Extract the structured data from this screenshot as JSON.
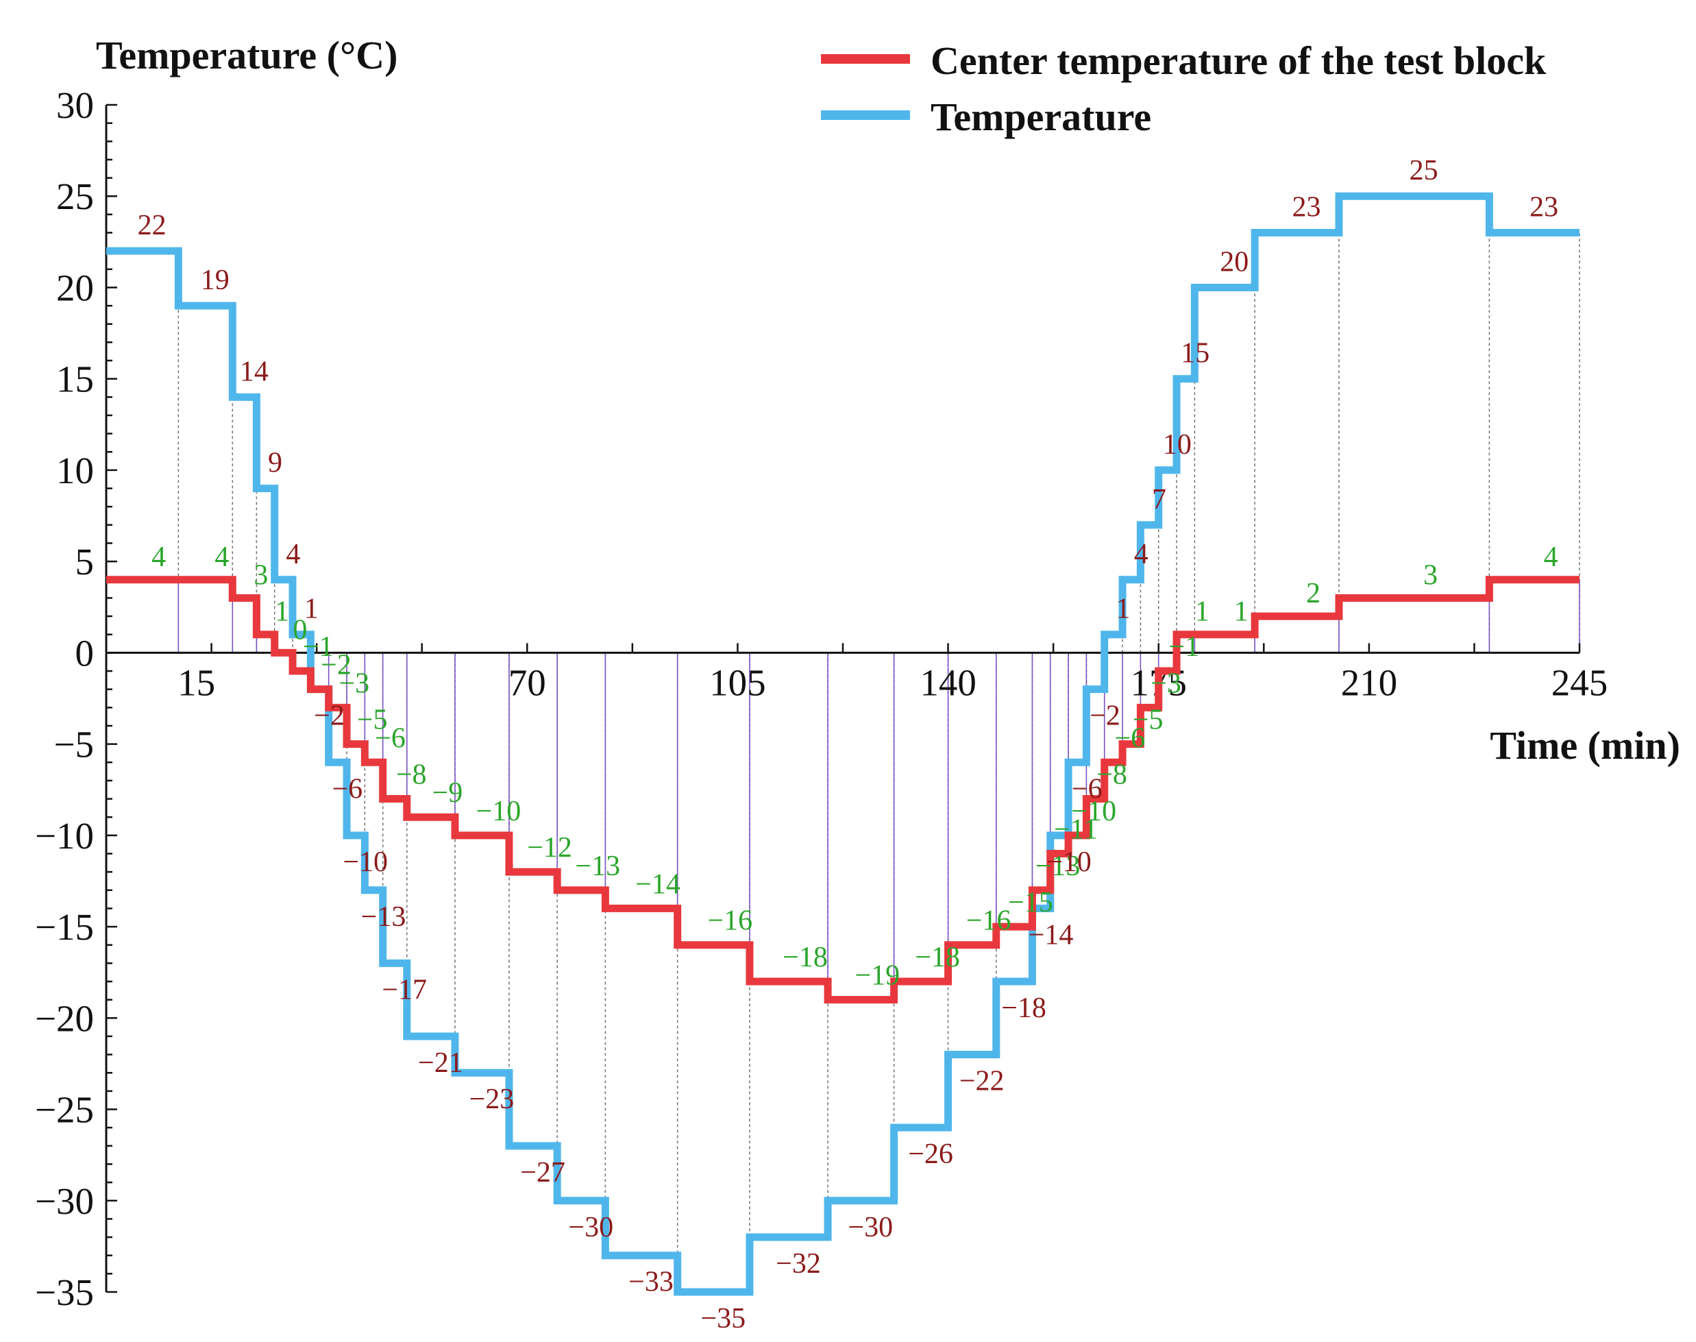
{
  "chart_data": {
    "type": "line",
    "title": "",
    "ylabel": "Temperature (°C)",
    "xlabel": "Time (min)",
    "xlim": [
      0,
      245
    ],
    "ylim": [
      -35,
      30
    ],
    "xticks": [
      15,
      70,
      105,
      140,
      175,
      210,
      245
    ],
    "yticks": [
      30,
      25,
      20,
      15,
      10,
      5,
      0,
      -5,
      -10,
      -15,
      -20,
      -25,
      -30,
      -35
    ],
    "legend_position": "top-right",
    "step_times": [
      0,
      12,
      21,
      25,
      28,
      31,
      34,
      37,
      40,
      43,
      46,
      50,
      58,
      67,
      75,
      83,
      95,
      107,
      120,
      131,
      140,
      148,
      154,
      157,
      160,
      163,
      166,
      169,
      172,
      175,
      178,
      181,
      191,
      205,
      230,
      245
    ],
    "series": [
      {
        "name": "Center temperature of the test block",
        "color": "#e8383d",
        "values": [
          4,
          4,
          3,
          1,
          0,
          -1,
          -2,
          -3,
          -5,
          -6,
          -8,
          -9,
          -10,
          -12,
          -13,
          -14,
          -16,
          -18,
          -19,
          -18,
          -16,
          -15,
          -13,
          -11,
          -10,
          -8,
          -6,
          -5,
          -3,
          -1,
          1,
          1,
          2,
          3,
          4
        ]
      },
      {
        "name": "Temperature",
        "color": "#4fb6ec",
        "values": [
          22,
          19,
          14,
          9,
          4,
          1,
          -2,
          -6,
          -10,
          -13,
          -17,
          -21,
          -23,
          -27,
          -30,
          -33,
          -35,
          -32,
          -30,
          -26,
          -22,
          -18,
          -14,
          -10,
          -6,
          -2,
          1,
          4,
          7,
          10,
          15,
          20,
          23,
          25,
          23
        ]
      }
    ],
    "data_labels": {
      "center_labels": [
        "4",
        "4",
        "3",
        "1",
        "0",
        "−1",
        "−2",
        "−3",
        "−5",
        "−6",
        "−8",
        "−9",
        "−10",
        "−12",
        "−13",
        "−14",
        "−16",
        "−18",
        "−19",
        "−18",
        "−16",
        "−15",
        "−13",
        "−11",
        "−10",
        "−8",
        "−6",
        "−5",
        "−3",
        "−1",
        "1",
        "1",
        "2",
        "3",
        "4"
      ],
      "temperature_labels": [
        "22",
        "19",
        "14",
        "9",
        "4",
        "1",
        "−2",
        "−6",
        "−10",
        "−13",
        "−17",
        "−21",
        "−23",
        "−27",
        "−30",
        "−33",
        "−35",
        "−32",
        "−30",
        "−26",
        "−22",
        "−18",
        "−14",
        "−10",
        "−6",
        "−2",
        "1",
        "4",
        "7",
        "10",
        "15",
        "20",
        "23",
        "25",
        "23"
      ],
      "center_label_color": "#2aa52a",
      "temperature_label_color": "#8b1a1a"
    }
  }
}
